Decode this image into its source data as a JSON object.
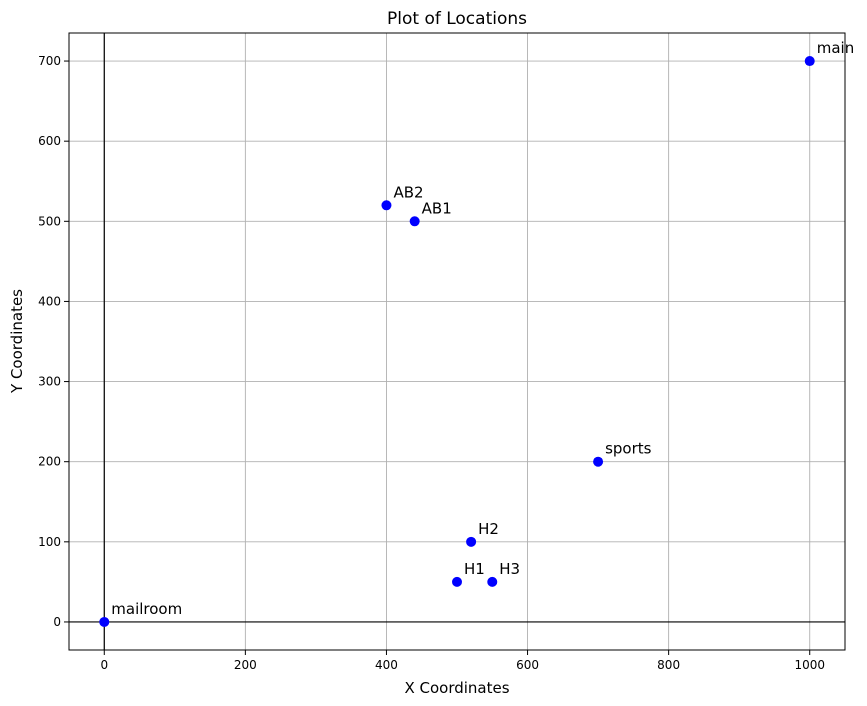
{
  "chart_data": {
    "type": "scatter",
    "title": "Plot of Locations",
    "xlabel": "X Coordinates",
    "ylabel": "Y Coordinates",
    "xlim": [
      -50,
      1050
    ],
    "ylim": [
      -35,
      735
    ],
    "xticks": [
      0,
      200,
      400,
      600,
      800,
      1000
    ],
    "yticks": [
      0,
      100,
      200,
      300,
      400,
      500,
      600,
      700
    ],
    "grid": true,
    "point_color": "#0000ff",
    "points": [
      {
        "label": "main",
        "x": 1000,
        "y": 700
      },
      {
        "label": "AB2",
        "x": 400,
        "y": 520
      },
      {
        "label": "AB1",
        "x": 440,
        "y": 500
      },
      {
        "label": "sports",
        "x": 700,
        "y": 200
      },
      {
        "label": "H2",
        "x": 520,
        "y": 100
      },
      {
        "label": "H1",
        "x": 500,
        "y": 50
      },
      {
        "label": "H3",
        "x": 550,
        "y": 50
      },
      {
        "label": "mailroom",
        "x": 0,
        "y": 0
      }
    ]
  }
}
